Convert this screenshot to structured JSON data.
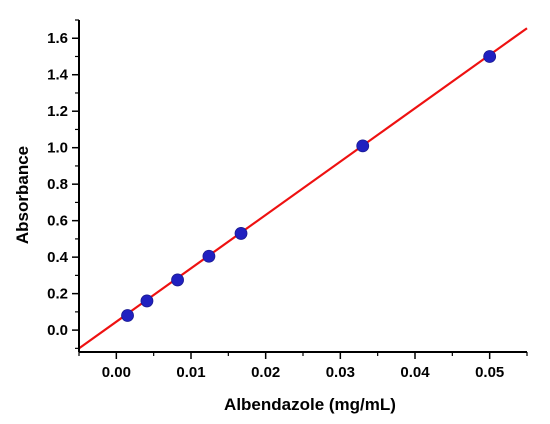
{
  "chart_data": {
    "type": "scatter",
    "title": "",
    "xlabel": "Albendazole (mg/mL)",
    "ylabel": "Absorbance",
    "xlim": [
      -0.005,
      0.055
    ],
    "ylim": [
      -0.12,
      1.7
    ],
    "x_ticks": [
      0.0,
      0.01,
      0.02,
      0.03,
      0.04,
      0.05
    ],
    "x_tick_labels": [
      "0.00",
      "0.01",
      "0.02",
      "0.03",
      "0.04",
      "0.05"
    ],
    "y_ticks": [
      0.0,
      0.2,
      0.4,
      0.6,
      0.8,
      1.0,
      1.2,
      1.4,
      1.6
    ],
    "y_tick_labels": [
      "0.0",
      "0.2",
      "0.4",
      "0.6",
      "0.8",
      "1.0",
      "1.2",
      "1.4",
      "1.6"
    ],
    "grid": false,
    "legend": "none",
    "series": [
      {
        "type": "scatter",
        "x": [
          0.0015,
          0.0041,
          0.0082,
          0.0124,
          0.0167,
          0.033,
          0.05
        ],
        "y": [
          0.08,
          0.16,
          0.275,
          0.405,
          0.53,
          1.01,
          1.5
        ],
        "color": "#2020c0"
      },
      {
        "type": "line",
        "x": [
          -0.005,
          0.055
        ],
        "y": [
          -0.1,
          1.655
        ],
        "color": "#ee1111"
      }
    ]
  }
}
